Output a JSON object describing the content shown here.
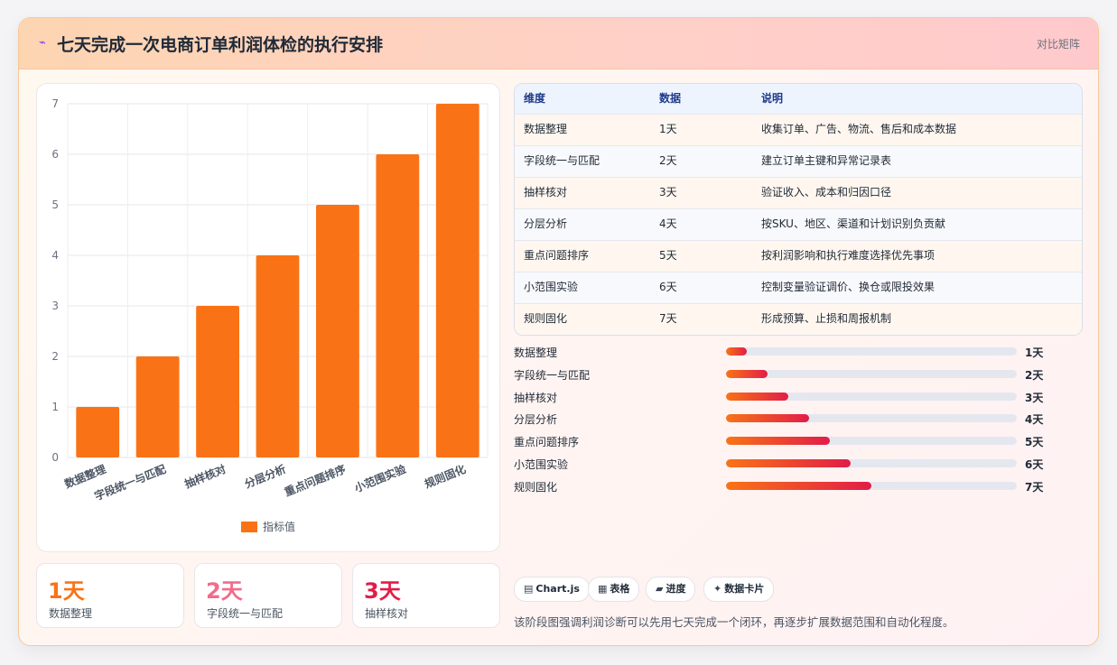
{
  "header": {
    "icon": "sparkle-icon",
    "title": "七天完成一次电商订单利润体检的执行安排",
    "right_label": "对比矩阵"
  },
  "chart_data": {
    "type": "bar",
    "categories": [
      "数据整理",
      "字段统一与匹配",
      "抽样核对",
      "分层分析",
      "重点问题排序",
      "小范围实验",
      "规则固化"
    ],
    "series": [
      {
        "name": "指标值",
        "values": [
          1,
          2,
          3,
          4,
          5,
          6,
          7
        ]
      }
    ],
    "ylim": [
      0,
      7
    ],
    "yticks": [
      0,
      1,
      2,
      3,
      4,
      5,
      6,
      7
    ],
    "grid": true,
    "legend": "bottom",
    "bar_color": "#f97316"
  },
  "stats": [
    {
      "value": "1天",
      "label": "数据整理",
      "color": "#f97316"
    },
    {
      "value": "2天",
      "label": "字段统一与匹配",
      "color": "#f26b8a"
    },
    {
      "value": "3天",
      "label": "抽样核对",
      "color": "#e11d48"
    }
  ],
  "table": {
    "headers": [
      "维度",
      "数据",
      "说明"
    ],
    "rows": [
      [
        "数据整理",
        "1天",
        "收集订单、广告、物流、售后和成本数据"
      ],
      [
        "字段统一与匹配",
        "2天",
        "建立订单主键和异常记录表"
      ],
      [
        "抽样核对",
        "3天",
        "验证收入、成本和归因口径"
      ],
      [
        "分层分析",
        "4天",
        "按SKU、地区、渠道和计划识别负贡献"
      ],
      [
        "重点问题排序",
        "5天",
        "按利润影响和执行难度选择优先事项"
      ],
      [
        "小范围实验",
        "6天",
        "控制变量验证调价、换仓或限投效果"
      ],
      [
        "规则固化",
        "7天",
        "形成预算、止损和周报机制"
      ]
    ]
  },
  "progress": {
    "max": 14,
    "items": [
      {
        "label": "数据整理",
        "value": 1,
        "text": "1天"
      },
      {
        "label": "字段统一与匹配",
        "value": 2,
        "text": "2天"
      },
      {
        "label": "抽样核对",
        "value": 3,
        "text": "3天"
      },
      {
        "label": "分层分析",
        "value": 4,
        "text": "4天"
      },
      {
        "label": "重点问题排序",
        "value": 5,
        "text": "5天"
      },
      {
        "label": "小范围实验",
        "value": 6,
        "text": "6天"
      },
      {
        "label": "规则固化",
        "value": 7,
        "text": "7天"
      }
    ]
  },
  "chips": [
    {
      "icon": "▤",
      "label": "Chart.js"
    },
    {
      "icon": "▦",
      "label": "表格"
    },
    {
      "icon": "▰",
      "label": "进度"
    },
    {
      "icon": "✦",
      "label": "数据卡片"
    }
  ],
  "note": "该阶段图强调利润诊断可以先用七天完成一个闭环，再逐步扩展数据范围和自动化程度。"
}
